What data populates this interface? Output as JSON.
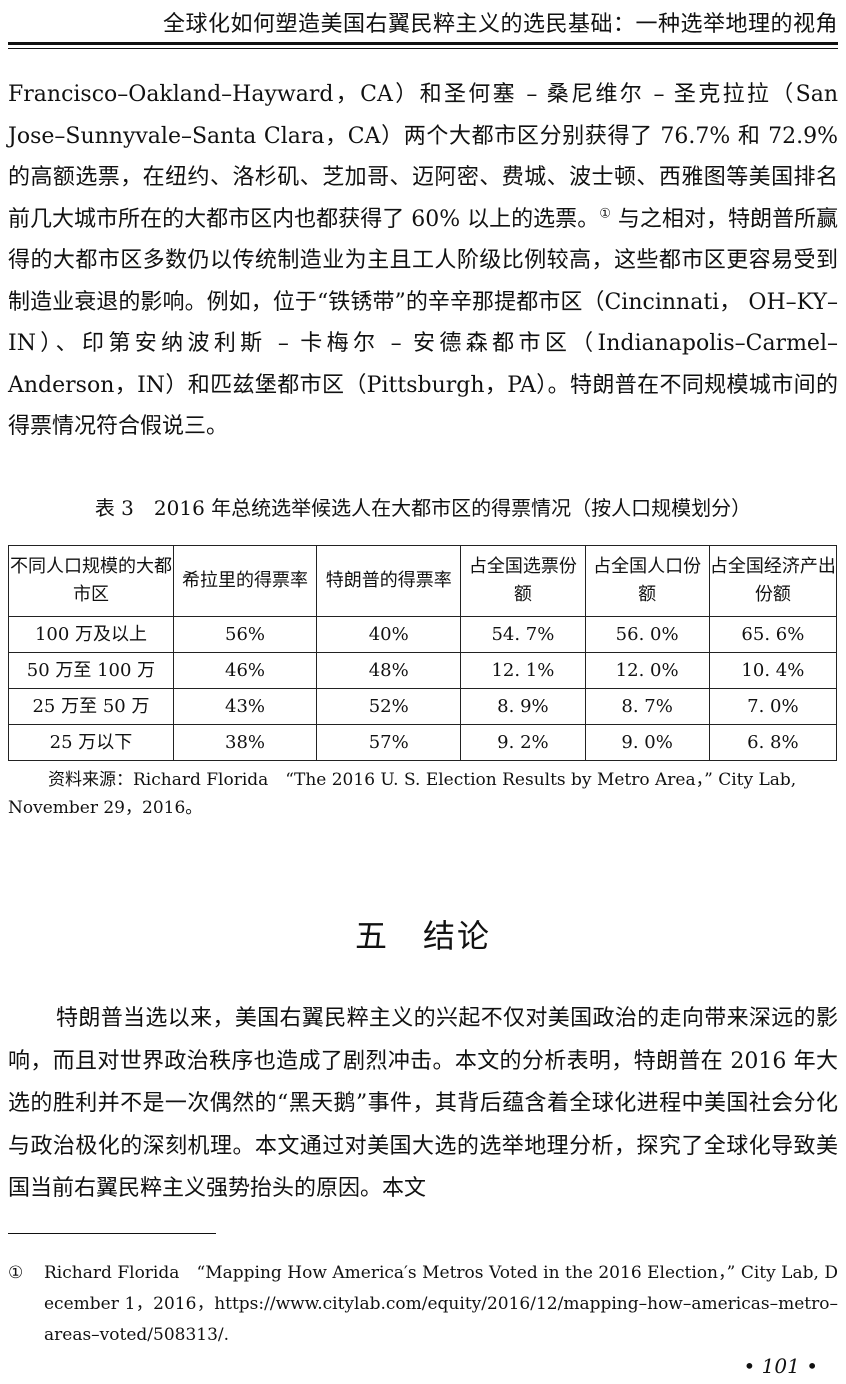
{
  "header": {
    "running_title": "全球化如何塑造美国右翼民粹主义的选民基础：一种选举地理的视角"
  },
  "body": {
    "paragraph_1": "Francisco–Oakland–Hayward，CA）和圣何塞 – 桑尼维尔 – 圣克拉拉（San Jose–Sunnyvale–Santa Clara，CA）两个大都市区分别获得了 76.7% 和 72.9% 的高额选票，在纽约、洛杉矶、芝加哥、迈阿密、费城、波士顿、西雅图等美国排名前几大城市所在的大都市区内也都获得了 60% 以上的选票。",
    "footnote_ref": "①",
    "paragraph_1_cont": " 与之相对，特朗普所赢得的大都市区多数仍以传统制造业为主且工人阶级比例较高，这些都市区更容易受到制造业衰退的影响。例如，位于“铁锈带”的辛辛那提都市区（Cincinnati， OH–KY–IN）、印第安纳波利斯 – 卡梅尔 – 安德森都市区（Indianapolis–Carmel–Anderson，IN）和匹兹堡都市区（Pittsburgh，PA）。特朗普在不同规模城市间的得票情况符合假说三。"
  },
  "table": {
    "caption": "表 3　2016 年总统选举候选人在大都市区的得票情况（按人口规模划分）",
    "headers": [
      "不同人口规模的大都市区",
      "希拉里的得票率",
      "特朗普的得票率",
      "占全国选票份额",
      "占全国人口份额",
      "占全国经济产出份额"
    ],
    "rows": [
      [
        "100 万及以上",
        "56%",
        "40%",
        "54. 7%",
        "56. 0%",
        "65. 6%"
      ],
      [
        "50 万至 100 万",
        "46%",
        "48%",
        "12. 1%",
        "12. 0%",
        "10. 4%"
      ],
      [
        "25 万至 50 万",
        "43%",
        "52%",
        "8. 9%",
        "8. 7%",
        "7. 0%"
      ],
      [
        "25 万以下",
        "38%",
        "57%",
        "9. 2%",
        "9. 0%",
        "6. 8%"
      ]
    ],
    "source": "资料来源：Richard Florida　“The 2016 U. S. Election Results by Metro Area，” City Lab, November 29，2016。"
  },
  "section": {
    "heading": "五　结论",
    "paragraph": "特朗普当选以来，美国右翼民粹主义的兴起不仅对美国政治的走向带来深远的影响，而且对世界政治秩序也造成了剧烈冲击。本文的分析表明，特朗普在 2016 年大选的胜利并不是一次偶然的“黑天鹅”事件，其背后蕴含着全球化进程中美国社会分化与政治极化的深刻机理。本文通过对美国大选的选举地理分析，探究了全球化导致美国当前右翼民粹主义强势抬头的原因。本文"
  },
  "footnote": {
    "marker": "①",
    "text": "Richard Florida　“Mapping How America′s Metros Voted in the 2016 Election，” City Lab, December 1，2016，https://www.citylab.com/equity/2016/12/mapping–how–americas–metro–areas–voted/508313/."
  },
  "page": {
    "number": "• 101 •"
  }
}
